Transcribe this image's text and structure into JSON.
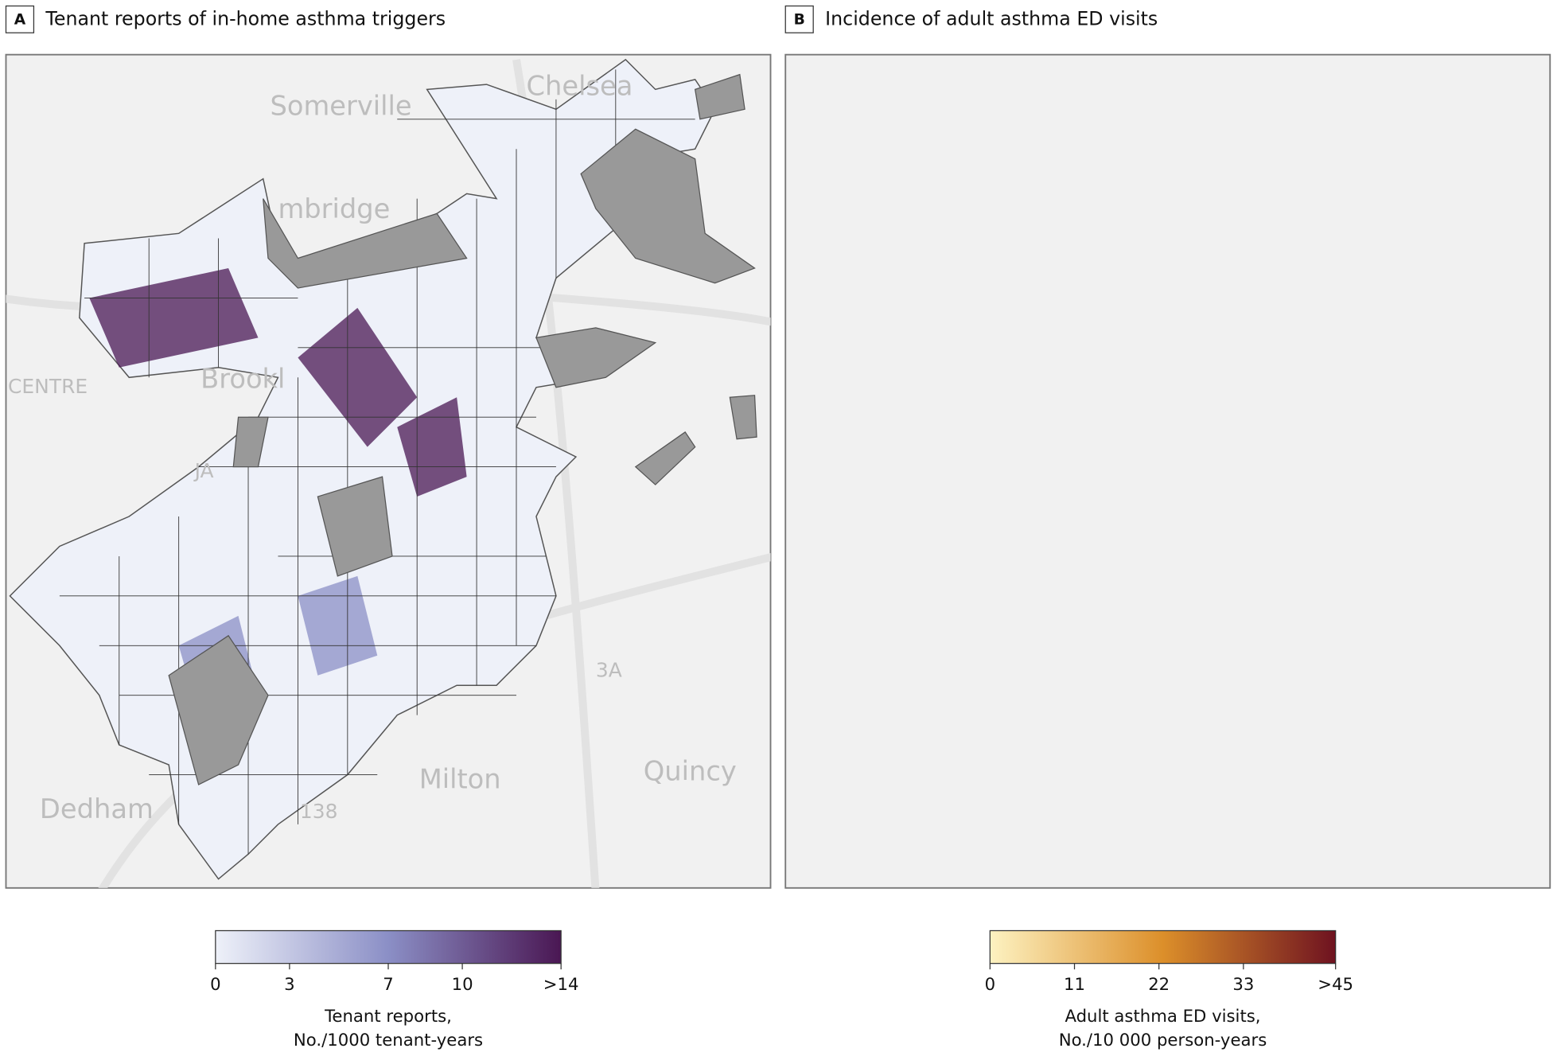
{
  "map": {
    "places": [
      "Somerville",
      "Chelsea",
      "mbridge",
      "CENTRE",
      "Brookl",
      "JA",
      "Milton",
      "Quincy",
      "Dedham",
      "138",
      "3A"
    ]
  },
  "panels": [
    {
      "letter": "A",
      "title": "Tenant reports of in-home asthma triggers",
      "legend": {
        "lim": [
          0,
          14
        ],
        "ticks": [
          0,
          3,
          7,
          10,
          {
            "value": 14,
            "label": ">14"
          }
        ],
        "title": [
          "Tenant reports,",
          "No./1000 tenant-years"
        ],
        "colors": [
          "#eef1f9",
          "#8b8fc6",
          "#4a1753"
        ]
      }
    },
    {
      "letter": "B",
      "title": "Incidence of adult asthma ED visits",
      "legend": {
        "lim": [
          0,
          45
        ],
        "ticks": [
          0,
          11,
          22,
          33,
          {
            "value": 45,
            "label": ">45"
          }
        ],
        "title": [
          "Adult asthma ED visits,",
          "No./10 000 person-years"
        ],
        "colors": [
          "#fdf2c1",
          "#dc8f2a",
          "#6e1220"
        ]
      }
    }
  ]
}
